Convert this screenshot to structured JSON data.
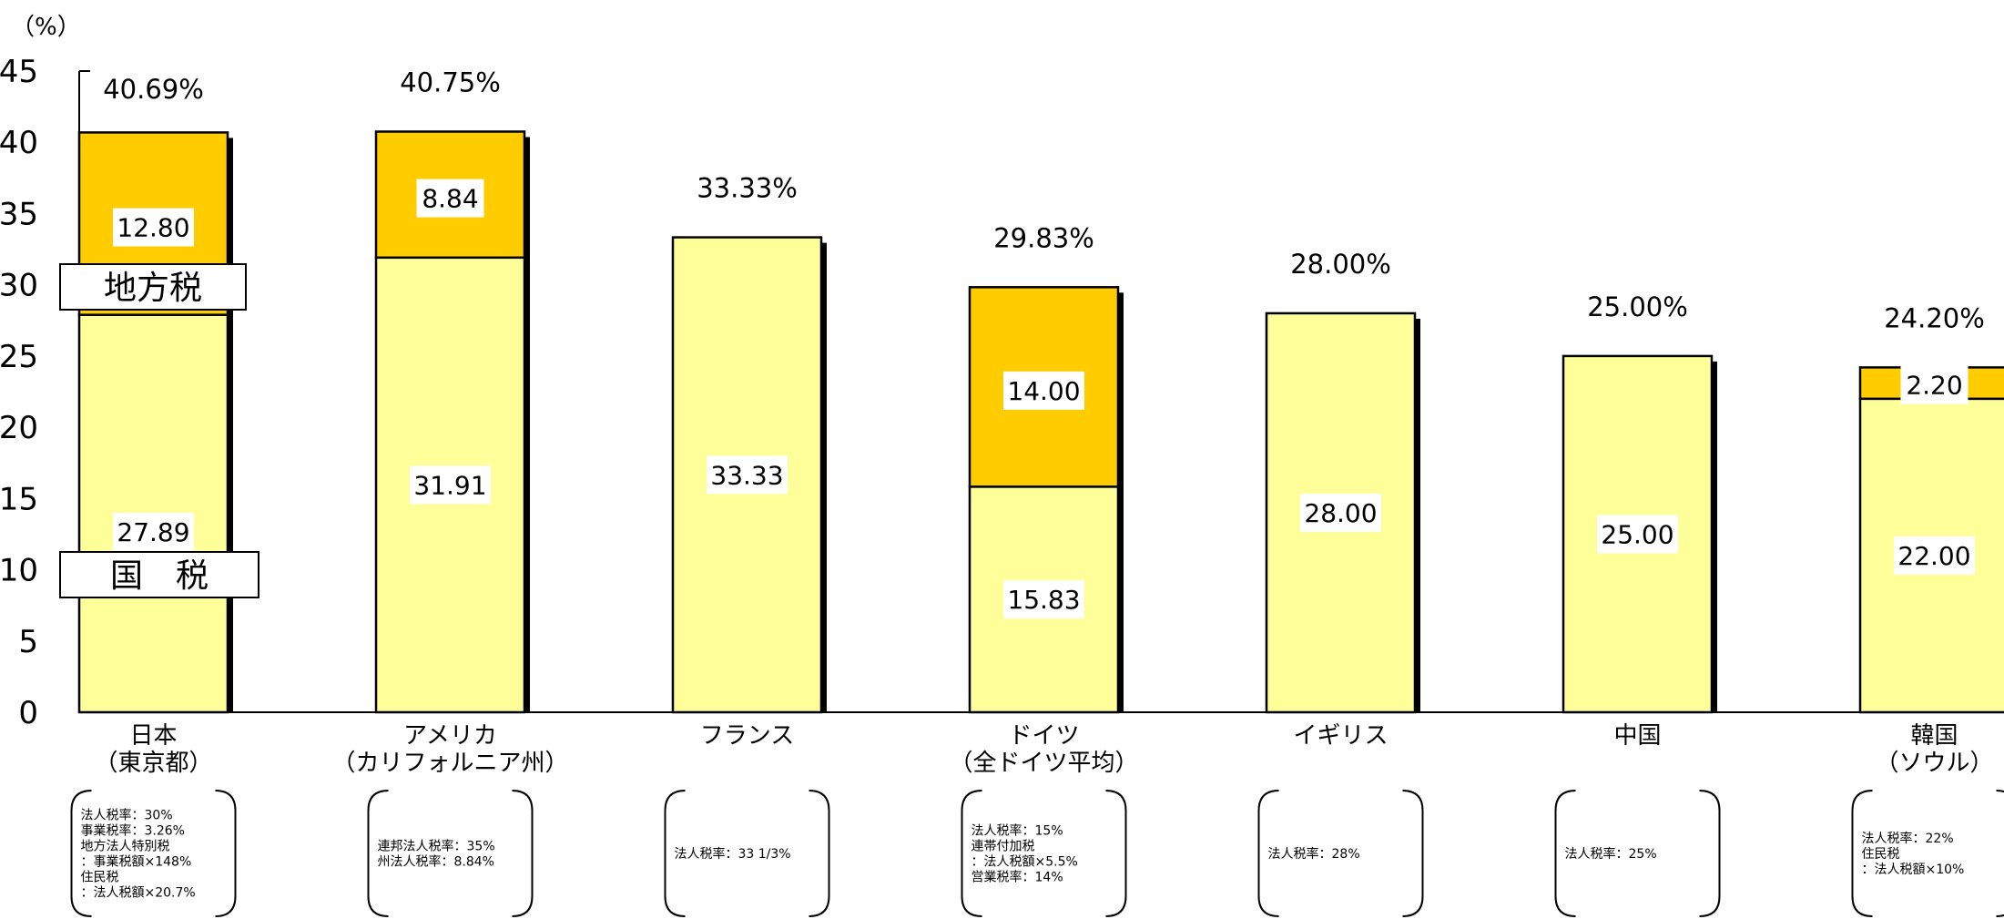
{
  "chart_data": {
    "type": "bar",
    "stacked": true,
    "unit_label": "（%）",
    "ylim": [
      0,
      45
    ],
    "yticks": [
      "0",
      "5",
      "10",
      "15",
      "20",
      "25",
      "30",
      "35",
      "40",
      "45"
    ],
    "grid": false,
    "categories": [
      {
        "line1": "日本",
        "line2": "（東京都）"
      },
      {
        "line1": "アメリカ",
        "line2": "（カリフォルニア州）"
      },
      {
        "line1": "フランス",
        "line2": ""
      },
      {
        "line1": "ドイツ",
        "line2": "（全ドイツ平均）"
      },
      {
        "line1": "イギリス",
        "line2": ""
      },
      {
        "line1": "中国",
        "line2": ""
      },
      {
        "line1": "韓国",
        "line2": "（ソウル）"
      }
    ],
    "series": [
      {
        "name": "国 税",
        "color": "#FFFF99",
        "values": [
          27.89,
          31.91,
          33.33,
          15.83,
          28.0,
          25.0,
          22.0
        ],
        "labels": [
          "27.89",
          "31.91",
          "33.33",
          "15.83",
          "28.00",
          "25.00",
          "22.00"
        ]
      },
      {
        "name": "地方税",
        "color": "#FFCC00",
        "values": [
          12.8,
          8.84,
          0,
          14.0,
          0,
          0,
          2.2
        ],
        "labels": [
          "12.80",
          "8.84",
          "",
          "14.00",
          "",
          "",
          "2.20"
        ]
      }
    ],
    "totals": [
      40.69,
      40.75,
      33.33,
      29.83,
      28.0,
      25.0,
      24.2
    ],
    "total_labels": [
      "40.69%",
      "40.75%",
      "33.33%",
      "29.83%",
      "28.00%",
      "25.00%",
      "24.20%"
    ],
    "series_callouts": [
      "地方税",
      "国　税"
    ],
    "notes": [
      [
        "法人税率：30%",
        "事業税率：3.26%",
        "地方法人特別税",
        "：事業税額×148%",
        "住民税",
        "：法人税額×20.7%"
      ],
      [
        "連邦法人税率：35%",
        "州法人税率：8.84%"
      ],
      [
        "法人税率：33 1/3%"
      ],
      [
        "法人税率：15%",
        "連帯付加税",
        "：法人税額×5.5%",
        "営業税率：14%"
      ],
      [
        "法人税率：28%"
      ],
      [
        "法人税率：25%"
      ],
      [
        "法人税率：22%",
        "住民税",
        "：法人税額×10%"
      ]
    ]
  }
}
